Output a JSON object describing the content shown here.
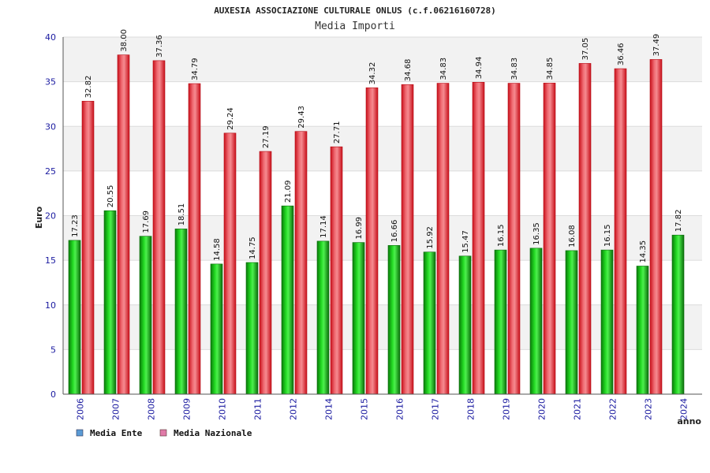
{
  "chart_data": {
    "type": "bar",
    "title": "AUXESIA ASSOCIAZIONE CULTURALE ONLUS (c.f.06216160728)",
    "subtitle": "Media Importi",
    "xlabel": "anno",
    "ylabel": "Euro",
    "ylim": [
      0,
      40
    ],
    "yticks": [
      0,
      5,
      10,
      15,
      20,
      25,
      30,
      35,
      40
    ],
    "categories": [
      "2006",
      "2007",
      "2008",
      "2009",
      "2010",
      "2011",
      "2012",
      "2014",
      "2015",
      "2016",
      "2017",
      "2018",
      "2019",
      "2020",
      "2021",
      "2022",
      "2023",
      "2024"
    ],
    "series": [
      {
        "name": "Media Ente",
        "values": [
          17.23,
          20.55,
          17.69,
          18.51,
          14.58,
          14.75,
          21.09,
          17.14,
          16.99,
          16.66,
          15.92,
          15.47,
          16.15,
          16.35,
          16.08,
          16.15,
          14.35,
          17.82
        ],
        "labels": [
          "17.23",
          "20.55",
          "17.69",
          "18.51",
          "14.58",
          "14.75",
          "21.09",
          "17.14",
          "16.99",
          "16.66",
          "15.92",
          "15.47",
          "16.15",
          "16.35",
          "16.08",
          "16.15",
          "14.35",
          "17.82"
        ]
      },
      {
        "name": "Media Nazionale",
        "values": [
          32.82,
          38.0,
          37.36,
          34.79,
          29.24,
          27.19,
          29.43,
          27.71,
          34.32,
          34.68,
          34.83,
          34.94,
          34.83,
          34.85,
          37.05,
          36.46,
          37.49,
          null
        ],
        "labels": [
          "32.82",
          "38.00",
          "37.36",
          "34.79",
          "29.24",
          "27.19",
          "29.43",
          "27.71",
          "34.32",
          "34.68",
          "34.83",
          "34.94",
          "34.83",
          "34.85",
          "37.05",
          "36.46",
          "37.49",
          null
        ]
      }
    ],
    "grid": true,
    "legend_position": "bottom-left",
    "colors": {
      "series0": "#1fb41f",
      "series1": "#e8303a",
      "legend0": "#5b9bd5",
      "legend1": "#e07aa8",
      "tick_text": "#1a1aa0",
      "band": "#f2f2f2"
    }
  }
}
